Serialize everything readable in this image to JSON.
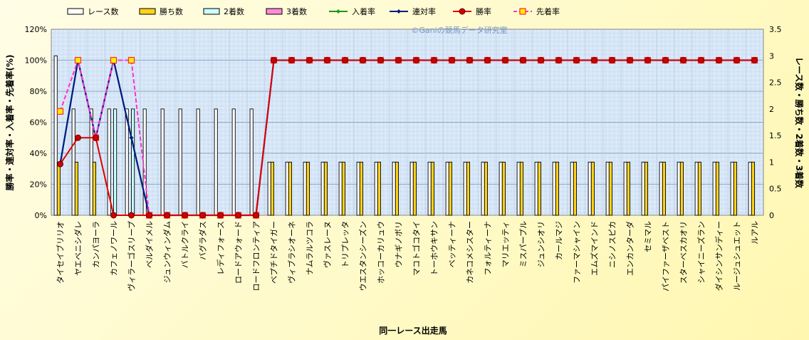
{
  "chart_data": {
    "type": "bar",
    "watermark": "©Ganiの競馬データ研究室",
    "xlabel": "同一レース出走馬",
    "ylabel_left": "勝率・連対率・入着率・先着率(%)",
    "ylabel_right": "レース数・勝ち数・2着数・3着数",
    "y_left_ticks": [
      "0%",
      "20%",
      "40%",
      "60%",
      "80%",
      "100%",
      "120%"
    ],
    "y_left_range": [
      0,
      120
    ],
    "y_right_ticks": [
      "0",
      "0.5",
      "1",
      "1.5",
      "2",
      "2.5",
      "3",
      "3.5"
    ],
    "y_right_range": [
      0,
      3.5
    ],
    "categories": [
      "タイセイブリリオ",
      "ヤエベニシダレ",
      "カンパヨーラ",
      "カフェノワール",
      "ヴィラーゴスリープ",
      "ベルダイメル",
      "ジュンウィンダム",
      "バトルクライ",
      "バグラダス",
      "レディフォース",
      "ロードアウォード",
      "ロードフロンティア",
      "ベプチドタイガー",
      "ヴィブラシオーネ",
      "ナムラルツコラ",
      "ヴァスレーヌ",
      "トリプレッタ",
      "ウエスタンシーズン",
      "ホッコーカリュウ",
      "ウナギノボリ",
      "マコトゴコタイ",
      "トーホウキサン",
      "ベッティーナ",
      "カネコメシスター",
      "フォルティーナ",
      "マリエッティ",
      "ミスパープル",
      "ジュンシオリ",
      "カールマジ",
      "ファーマシャイン",
      "エムズマインド",
      "ニシノスピカ",
      "エンカンターダ",
      "セミマル",
      "パイファーザベスト",
      "スターベスカオリ",
      "シャイニーズラン",
      "ダイシンサンディー",
      "ルージュシュエット",
      "ルアル"
    ],
    "series": [
      {
        "name": "レース数",
        "color": "#ffffff",
        "axis": "right",
        "kind": "bar",
        "values": [
          3,
          2,
          2,
          2,
          2,
          2,
          2,
          2,
          2,
          2,
          2,
          2,
          1,
          1,
          1,
          1,
          1,
          1,
          1,
          1,
          1,
          1,
          1,
          1,
          1,
          1,
          1,
          1,
          1,
          1,
          1,
          1,
          1,
          1,
          1,
          1,
          1,
          1,
          1,
          1
        ]
      },
      {
        "name": "勝ち数",
        "color": "#ffd21a",
        "axis": "right",
        "kind": "bar",
        "values": [
          1,
          1,
          1,
          0,
          0,
          0,
          0,
          0,
          0,
          0,
          0,
          0,
          1,
          1,
          1,
          1,
          1,
          1,
          1,
          1,
          1,
          1,
          1,
          1,
          1,
          1,
          1,
          1,
          1,
          1,
          1,
          1,
          1,
          1,
          1,
          1,
          1,
          1,
          1,
          1
        ]
      },
      {
        "name": "2着数",
        "color": "#ccffff",
        "axis": "right",
        "kind": "bar",
        "values": [
          0,
          0,
          0,
          2,
          2,
          0,
          0,
          0,
          0,
          0,
          0,
          0,
          0,
          0,
          0,
          0,
          0,
          0,
          0,
          0,
          0,
          0,
          0,
          0,
          0,
          0,
          0,
          0,
          0,
          0,
          0,
          0,
          0,
          0,
          0,
          0,
          0,
          0,
          0,
          0
        ]
      },
      {
        "name": "3着数",
        "color": "#ff8ad8",
        "axis": "right",
        "kind": "bar",
        "values": [
          0,
          0,
          0,
          0,
          0,
          0,
          0,
          0,
          0,
          0,
          0,
          0,
          0,
          0,
          0,
          0,
          0,
          0,
          0,
          0,
          0,
          0,
          0,
          0,
          0,
          0,
          0,
          0,
          0,
          0,
          0,
          0,
          0,
          0,
          0,
          0,
          0,
          0,
          0,
          0
        ]
      },
      {
        "name": "入着率",
        "color": "#1a9a1a",
        "axis": "left",
        "kind": "line",
        "marker": "diamond",
        "values": [
          33,
          100,
          50,
          100,
          50,
          0,
          0,
          0,
          0,
          0,
          0,
          0,
          100,
          100,
          100,
          100,
          100,
          100,
          100,
          100,
          100,
          100,
          100,
          100,
          100,
          100,
          100,
          100,
          100,
          100,
          100,
          100,
          100,
          100,
          100,
          100,
          100,
          100,
          100,
          100
        ]
      },
      {
        "name": "連対率",
        "color": "#001a80",
        "axis": "left",
        "kind": "line",
        "marker": "diamond",
        "values": [
          33,
          100,
          50,
          100,
          50,
          0,
          0,
          0,
          0,
          0,
          0,
          0,
          100,
          100,
          100,
          100,
          100,
          100,
          100,
          100,
          100,
          100,
          100,
          100,
          100,
          100,
          100,
          100,
          100,
          100,
          100,
          100,
          100,
          100,
          100,
          100,
          100,
          100,
          100,
          100
        ]
      },
      {
        "name": "勝率",
        "color": "#e00000",
        "axis": "left",
        "kind": "line",
        "marker": "circle",
        "values": [
          33,
          50,
          50,
          0,
          0,
          0,
          0,
          0,
          0,
          0,
          0,
          0,
          100,
          100,
          100,
          100,
          100,
          100,
          100,
          100,
          100,
          100,
          100,
          100,
          100,
          100,
          100,
          100,
          100,
          100,
          100,
          100,
          100,
          100,
          100,
          100,
          100,
          100,
          100,
          100
        ]
      },
      {
        "name": "先着率",
        "color": "#ff33cc",
        "axis": "left",
        "kind": "line",
        "marker": "square",
        "dashed": true,
        "values": [
          67,
          100,
          50,
          100,
          100,
          0,
          0,
          0,
          0,
          0,
          0,
          0,
          100,
          100,
          100,
          100,
          100,
          100,
          100,
          100,
          100,
          100,
          100,
          100,
          100,
          100,
          100,
          100,
          100,
          100,
          100,
          100,
          100,
          100,
          100,
          100,
          100,
          100,
          100,
          100
        ]
      }
    ],
    "legend_position": "top",
    "grid": true
  }
}
